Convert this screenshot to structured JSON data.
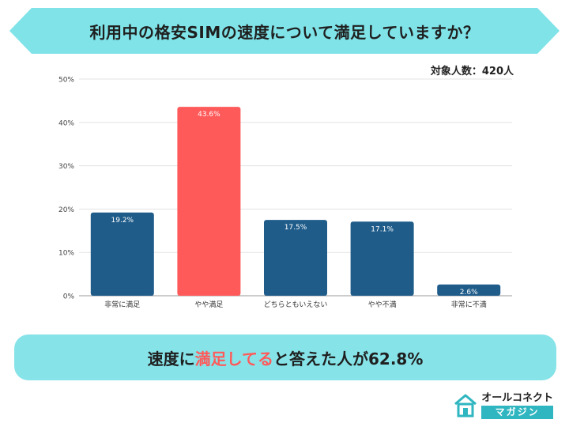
{
  "title": "利用中の格安SIMの速度について満足していますか？",
  "respondents": "対象人数：420人",
  "summary": {
    "part1": "速度に",
    "highlight": "満足してる",
    "part2": "と答えた人が62.8%",
    "highlight_color": "#ff5a5a"
  },
  "logo": {
    "top": "オールコネクト",
    "bottom": "マガジン",
    "icon": "house-icon"
  },
  "colors": {
    "banner": "#7fe3e8",
    "bar": "#1f5c8a",
    "highlight_bar": "#ff5a5a",
    "logo_accent": "#2fb6c0"
  },
  "chart_data": {
    "type": "bar",
    "categories": [
      "非常に満足",
      "やや満足",
      "どちらともいえない",
      "やや不満",
      "非常に不満"
    ],
    "values": [
      19.2,
      43.6,
      17.5,
      17.1,
      2.6
    ],
    "value_labels": [
      "19.2%",
      "43.6%",
      "17.5%",
      "17.1%",
      "2.6%"
    ],
    "highlight_index": 1,
    "yticks": [
      "0%",
      "10%",
      "20%",
      "30%",
      "40%",
      "50%"
    ],
    "ylim": [
      0,
      50
    ],
    "grid": true,
    "title": "",
    "xlabel": "",
    "ylabel": ""
  }
}
